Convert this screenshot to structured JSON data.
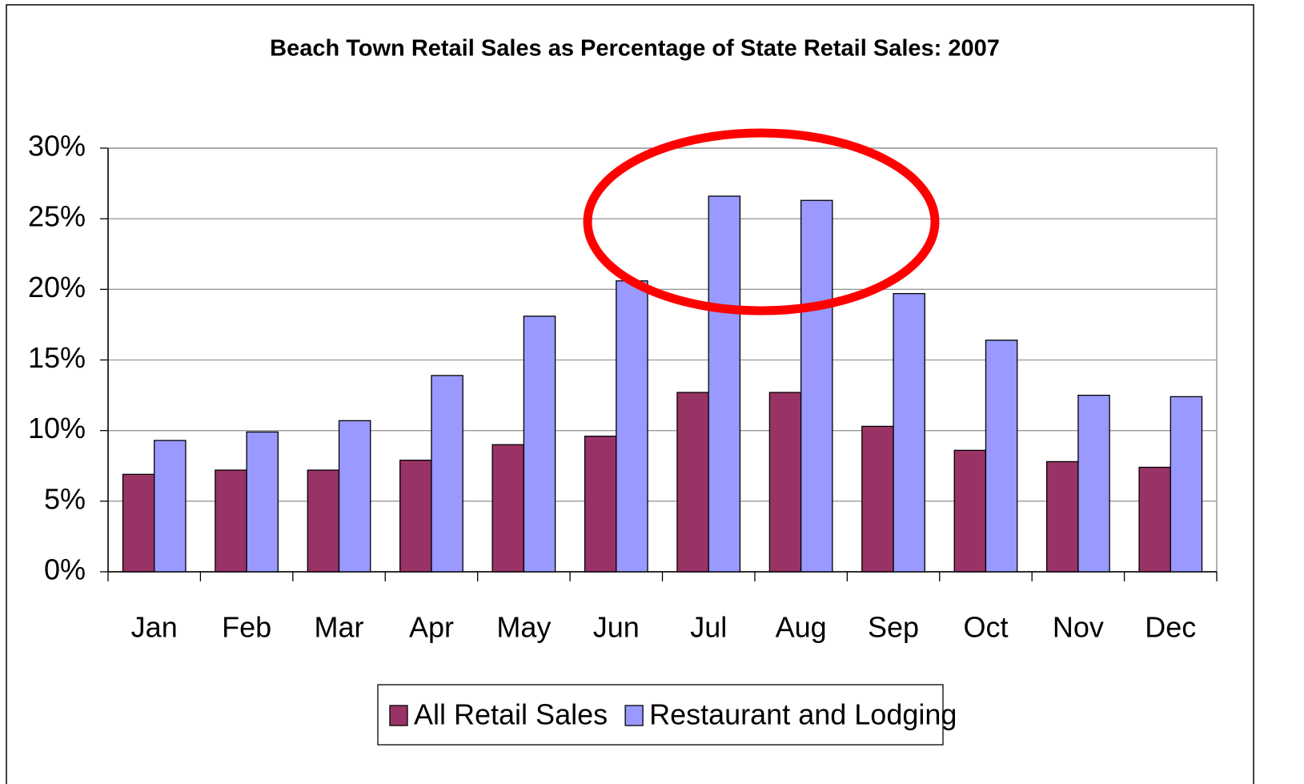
{
  "chart_data": {
    "type": "bar",
    "title": "Beach Town Retail Sales as Percentage of State Retail Sales: 2007",
    "categories": [
      "Jan",
      "Feb",
      "Mar",
      "Apr",
      "May",
      "Jun",
      "Jul",
      "Aug",
      "Sep",
      "Oct",
      "Nov",
      "Dec"
    ],
    "series": [
      {
        "name": "All Retail Sales",
        "color": "#993366",
        "values": [
          6.9,
          7.2,
          7.2,
          7.9,
          9.0,
          9.6,
          12.7,
          12.7,
          10.3,
          8.6,
          7.8,
          7.4
        ]
      },
      {
        "name": "Restaurant and Lodging",
        "color": "#9999ff",
        "values": [
          9.3,
          9.9,
          10.7,
          13.9,
          18.1,
          20.6,
          26.6,
          26.3,
          19.7,
          16.4,
          12.5,
          12.4
        ]
      }
    ],
    "ylim": [
      0,
      30
    ],
    "yticks": [
      {
        "value": 0,
        "label": "0%"
      },
      {
        "value": 5,
        "label": "5%"
      },
      {
        "value": 10,
        "label": "10%"
      },
      {
        "value": 15,
        "label": "15%"
      },
      {
        "value": 20,
        "label": "20%"
      },
      {
        "value": 25,
        "label": "25%"
      },
      {
        "value": 30,
        "label": "30%"
      }
    ],
    "grid": true,
    "legend": "bottom"
  }
}
